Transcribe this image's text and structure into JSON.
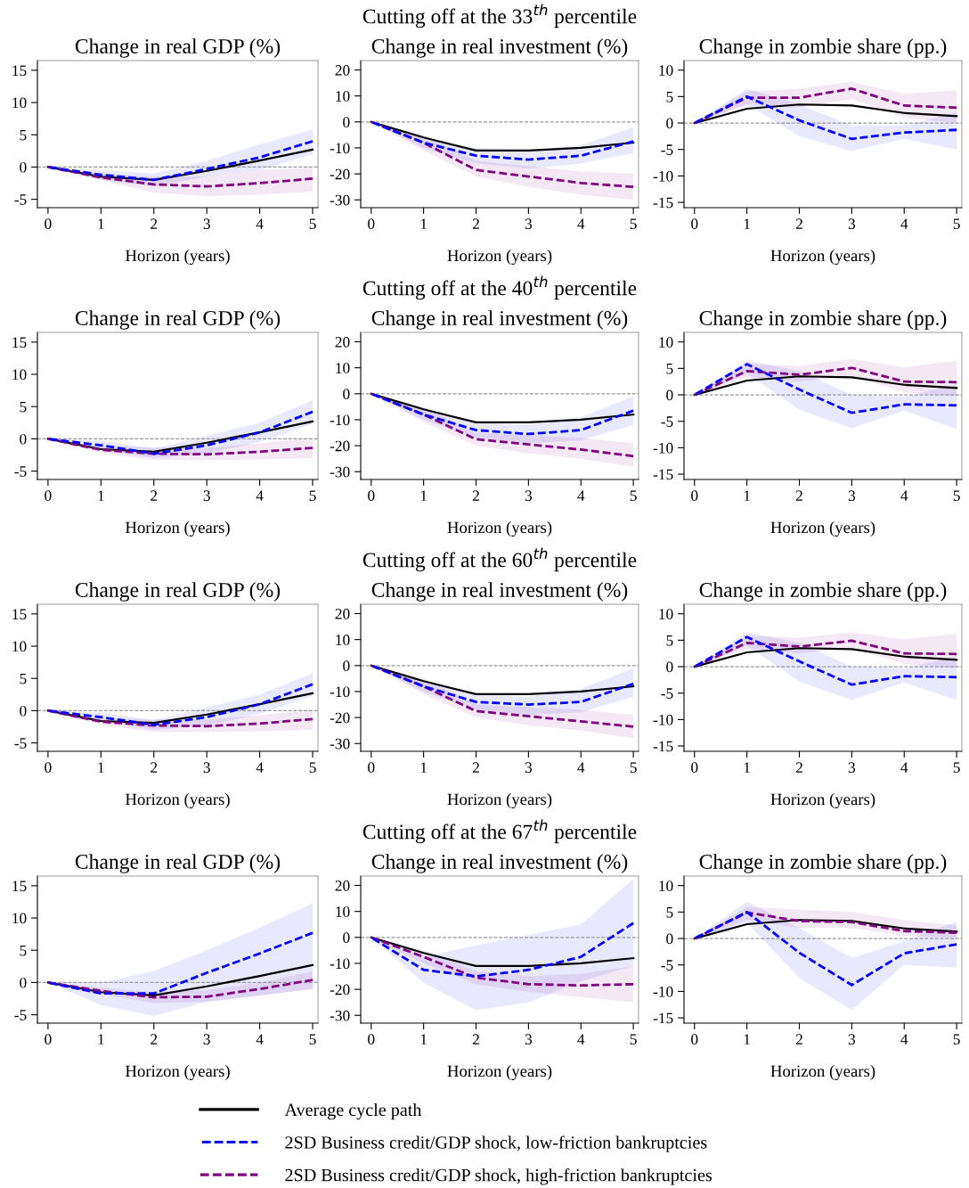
{
  "chart_data": [
    {
      "type": "line",
      "title": "Change in real GDP (%)",
      "xlabel": "Horizon (years)",
      "x": [
        0,
        1,
        2,
        3,
        4,
        5
      ],
      "xlim": [
        -0.2,
        5.1
      ],
      "xticks": [
        0,
        1,
        2,
        3,
        4,
        5
      ],
      "ylim": [
        -6.3,
        16.5
      ],
      "yticks": [
        -5,
        0,
        5,
        10,
        15
      ],
      "ref_lines": [
        {
          "axis": "y",
          "value": 0,
          "color": "#999999",
          "line_style": "dashed"
        }
      ],
      "series": [
        {
          "color": "#000000",
          "line_style": "solid",
          "values": [
            0,
            -1.5,
            -2,
            -0.6,
            1,
            2.7
          ]
        },
        {
          "color": "#0000ff",
          "line_style": "dashed",
          "values": [
            0,
            -1.2,
            -2,
            -0.3,
            1.5,
            4
          ],
          "lower": [
            0,
            -2,
            -3,
            -1.5,
            -0.5,
            2
          ],
          "upper": [
            0,
            -0.5,
            -1,
            1,
            3.5,
            5.8
          ]
        },
        {
          "color": "#800080",
          "line_style": "dashed",
          "values": [
            0,
            -1.6,
            -2.7,
            -3,
            -2.5,
            -1.8
          ],
          "lower": [
            0,
            -2,
            -4,
            -4.5,
            -4.3,
            -3.8
          ],
          "upper": [
            0,
            -1,
            -1.5,
            -1.5,
            -0.5,
            0
          ]
        }
      ]
    },
    {
      "type": "line",
      "title": "Change in real investment (%)",
      "xlabel": "Horizon (years)",
      "annotations": [
        "Cutting off at the 33$^{th}$ percentile"
      ],
      "x": [
        0,
        1,
        2,
        3,
        4,
        5
      ],
      "xlim": [
        -0.2,
        5.1
      ],
      "xticks": [
        0,
        1,
        2,
        3,
        4,
        5
      ],
      "ylim": [
        -33,
        23.6
      ],
      "yticks": [
        -30,
        -20,
        -10,
        0,
        10,
        20
      ],
      "ref_lines": [
        {
          "axis": "y",
          "value": 0,
          "color": "#999999",
          "line_style": "dashed"
        }
      ],
      "series": [
        {
          "color": "#000000",
          "line_style": "solid",
          "values": [
            0,
            -6,
            -11,
            -11,
            -10,
            -8
          ]
        },
        {
          "color": "#0000ff",
          "line_style": "dashed",
          "values": [
            0,
            -8,
            -13,
            -14.5,
            -13,
            -7.5
          ],
          "lower": [
            0,
            -10,
            -16,
            -18,
            -16,
            -12
          ],
          "upper": [
            0,
            -6,
            -10,
            -11,
            -9,
            -2
          ]
        },
        {
          "color": "#800080",
          "line_style": "dashed",
          "values": [
            0,
            -8,
            -18.5,
            -21,
            -23.5,
            -25
          ],
          "lower": [
            0,
            -11,
            -21,
            -25,
            -28,
            -30
          ],
          "upper": [
            0,
            -5,
            -15,
            -17,
            -19,
            -20
          ]
        }
      ]
    },
    {
      "type": "line",
      "title": "Change in zombie share (pp.)",
      "xlabel": "Horizon (years)",
      "x": [
        0,
        1,
        2,
        3,
        4,
        5
      ],
      "xlim": [
        -0.2,
        5.1
      ],
      "xticks": [
        0,
        1,
        2,
        3,
        4,
        5
      ],
      "ylim": [
        -16,
        11.8
      ],
      "yticks": [
        -15,
        -10,
        -5,
        0,
        5,
        10
      ],
      "ref_lines": [
        {
          "axis": "y",
          "value": 0,
          "color": "#999999",
          "line_style": "dashed"
        }
      ],
      "series": [
        {
          "color": "#000000",
          "line_style": "solid",
          "values": [
            0,
            2.7,
            3.5,
            3.3,
            1.9,
            1.3
          ]
        },
        {
          "color": "#0000ff",
          "line_style": "dashed",
          "values": [
            0,
            5,
            0.5,
            -3,
            -1.8,
            -1.3
          ],
          "lower": [
            0,
            3.5,
            -2.5,
            -5.3,
            -3,
            -5
          ],
          "upper": [
            0,
            6.5,
            3.5,
            -0.5,
            -0.5,
            2
          ]
        },
        {
          "color": "#800080",
          "line_style": "dashed",
          "values": [
            0,
            4.8,
            4.8,
            6.5,
            3.3,
            2.9
          ],
          "lower": [
            0,
            3.5,
            3,
            4.5,
            1,
            0
          ],
          "upper": [
            0,
            6,
            6.5,
            7.8,
            5.5,
            6.2
          ]
        }
      ]
    },
    {
      "type": "line",
      "title": "Change in real GDP (%)",
      "xlabel": "Horizon (years)",
      "x": [
        0,
        1,
        2,
        3,
        4,
        5
      ],
      "xlim": [
        -0.2,
        5.1
      ],
      "xticks": [
        0,
        1,
        2,
        3,
        4,
        5
      ],
      "ylim": [
        -6.3,
        16.5
      ],
      "yticks": [
        -5,
        0,
        5,
        10,
        15
      ],
      "ref_lines": [
        {
          "axis": "y",
          "value": 0,
          "color": "#999999",
          "line_style": "dashed"
        }
      ],
      "series": [
        {
          "color": "#000000",
          "line_style": "solid",
          "values": [
            0,
            -1.6,
            -2,
            -0.6,
            1,
            2.7
          ]
        },
        {
          "color": "#0000ff",
          "line_style": "dashed",
          "values": [
            0,
            -1,
            -2.3,
            -1,
            1,
            4.2
          ],
          "lower": [
            0,
            -1.7,
            -3,
            -2.3,
            -0.5,
            2.3
          ],
          "upper": [
            0,
            -0.3,
            -1.5,
            0.5,
            2.5,
            6
          ]
        },
        {
          "color": "#800080",
          "line_style": "dashed",
          "values": [
            0,
            -1.7,
            -2.3,
            -2.4,
            -2,
            -1.4
          ],
          "lower": [
            0,
            -2.2,
            -3.3,
            -3.3,
            -3.2,
            -3
          ],
          "upper": [
            0,
            -1.2,
            -1.3,
            -1.4,
            -0.7,
            0.2
          ]
        }
      ]
    },
    {
      "type": "line",
      "title": "Change in real investment (%)",
      "xlabel": "Horizon (years)",
      "annotations": [
        "Cutting off at the 40$^{th}$ percentile"
      ],
      "x": [
        0,
        1,
        2,
        3,
        4,
        5
      ],
      "xlim": [
        -0.2,
        5.1
      ],
      "xticks": [
        0,
        1,
        2,
        3,
        4,
        5
      ],
      "ylim": [
        -33,
        23.6
      ],
      "yticks": [
        -30,
        -20,
        -10,
        0,
        10,
        20
      ],
      "ref_lines": [
        {
          "axis": "y",
          "value": 0,
          "color": "#999999",
          "line_style": "dashed"
        }
      ],
      "series": [
        {
          "color": "#000000",
          "line_style": "solid",
          "values": [
            0,
            -6,
            -11,
            -11,
            -10,
            -8
          ]
        },
        {
          "color": "#0000ff",
          "line_style": "dashed",
          "values": [
            0,
            -8,
            -14,
            -15.5,
            -14,
            -6.5
          ],
          "lower": [
            0,
            -10,
            -17,
            -19,
            -18,
            -12
          ],
          "upper": [
            0,
            -6,
            -11,
            -12,
            -9,
            -1
          ]
        },
        {
          "color": "#800080",
          "line_style": "dashed",
          "values": [
            0,
            -8,
            -17.5,
            -19.5,
            -21.5,
            -24
          ],
          "lower": [
            0,
            -11,
            -20,
            -23,
            -25,
            -28
          ],
          "upper": [
            0,
            -5,
            -15,
            -16,
            -17,
            -19
          ]
        }
      ]
    },
    {
      "type": "line",
      "title": "Change in zombie share (pp.)",
      "xlabel": "Horizon (years)",
      "x": [
        0,
        1,
        2,
        3,
        4,
        5
      ],
      "xlim": [
        -0.2,
        5.1
      ],
      "xticks": [
        0,
        1,
        2,
        3,
        4,
        5
      ],
      "ylim": [
        -16,
        11.8
      ],
      "yticks": [
        -15,
        -10,
        -5,
        0,
        5,
        10
      ],
      "ref_lines": [
        {
          "axis": "y",
          "value": 0,
          "color": "#999999",
          "line_style": "dashed"
        }
      ],
      "series": [
        {
          "color": "#000000",
          "line_style": "solid",
          "values": [
            0,
            2.7,
            3.5,
            3.3,
            1.9,
            1.3
          ]
        },
        {
          "color": "#0000ff",
          "line_style": "dashed",
          "values": [
            0,
            5.8,
            1,
            -3.4,
            -1.8,
            -2
          ],
          "lower": [
            0,
            4,
            -2.8,
            -6.3,
            -3,
            -6.5
          ],
          "upper": [
            0,
            6.5,
            4.5,
            0,
            -0.3,
            2
          ]
        },
        {
          "color": "#800080",
          "line_style": "dashed",
          "values": [
            0,
            4.5,
            3.8,
            5.1,
            2.5,
            2.4
          ],
          "lower": [
            0,
            3.3,
            2.5,
            3.5,
            0.5,
            -0.3
          ],
          "upper": [
            0,
            5.8,
            5.5,
            6.8,
            5.2,
            6.5
          ]
        }
      ]
    },
    {
      "type": "line",
      "title": "Change in real GDP (%)",
      "xlabel": "Horizon (years)",
      "x": [
        0,
        1,
        2,
        3,
        4,
        5
      ],
      "xlim": [
        -0.2,
        5.1
      ],
      "xticks": [
        0,
        1,
        2,
        3,
        4,
        5
      ],
      "ylim": [
        -6.3,
        16.5
      ],
      "yticks": [
        -5,
        0,
        5,
        10,
        15
      ],
      "ref_lines": [
        {
          "axis": "y",
          "value": 0,
          "color": "#999999",
          "line_style": "dashed"
        }
      ],
      "series": [
        {
          "color": "#000000",
          "line_style": "solid",
          "values": [
            0,
            -1.6,
            -1.9,
            -0.6,
            1,
            2.7
          ]
        },
        {
          "color": "#0000ff",
          "line_style": "dashed",
          "values": [
            0,
            -1,
            -2.2,
            -1,
            1,
            4.1
          ],
          "lower": [
            0,
            -1.7,
            -3,
            -2.3,
            -0.5,
            2.3
          ],
          "upper": [
            0,
            -0.3,
            -1.5,
            0.5,
            2.5,
            5.8
          ]
        },
        {
          "color": "#800080",
          "line_style": "dashed",
          "values": [
            0,
            -1.7,
            -2.3,
            -2.4,
            -2,
            -1.3
          ],
          "lower": [
            0,
            -2.2,
            -3.3,
            -3.3,
            -3.2,
            -3
          ],
          "upper": [
            0,
            -1.2,
            -1.3,
            -1.4,
            -0.7,
            0.2
          ]
        }
      ]
    },
    {
      "type": "line",
      "title": "Change in real investment (%)",
      "xlabel": "Horizon (years)",
      "annotations": [
        "Cutting off at the 60$^{th}$ percentile"
      ],
      "x": [
        0,
        1,
        2,
        3,
        4,
        5
      ],
      "xlim": [
        -0.2,
        5.1
      ],
      "xticks": [
        0,
        1,
        2,
        3,
        4,
        5
      ],
      "ylim": [
        -33,
        23.6
      ],
      "yticks": [
        -30,
        -20,
        -10,
        0,
        10,
        20
      ],
      "ref_lines": [
        {
          "axis": "y",
          "value": 0,
          "color": "#999999",
          "line_style": "dashed"
        }
      ],
      "series": [
        {
          "color": "#000000",
          "line_style": "solid",
          "values": [
            0,
            -6,
            -11,
            -11,
            -10,
            -8
          ]
        },
        {
          "color": "#0000ff",
          "line_style": "dashed",
          "values": [
            0,
            -8,
            -14,
            -15,
            -14,
            -7
          ],
          "lower": [
            0,
            -10,
            -17,
            -19,
            -18,
            -12
          ],
          "upper": [
            0,
            -6,
            -11,
            -12,
            -9,
            -1
          ]
        },
        {
          "color": "#800080",
          "line_style": "dashed",
          "values": [
            0,
            -8,
            -17.5,
            -19.5,
            -21.5,
            -23.5
          ],
          "lower": [
            0,
            -11,
            -20,
            -23,
            -25,
            -28
          ],
          "upper": [
            0,
            -5,
            -15,
            -16,
            -17,
            -19
          ]
        }
      ]
    },
    {
      "type": "line",
      "title": "Change in zombie share (pp.)",
      "xlabel": "Horizon (years)",
      "x": [
        0,
        1,
        2,
        3,
        4,
        5
      ],
      "xlim": [
        -0.2,
        5.1
      ],
      "xticks": [
        0,
        1,
        2,
        3,
        4,
        5
      ],
      "ylim": [
        -16,
        11.8
      ],
      "yticks": [
        -15,
        -10,
        -5,
        0,
        5,
        10
      ],
      "ref_lines": [
        {
          "axis": "y",
          "value": 0,
          "color": "#999999",
          "line_style": "dashed"
        }
      ],
      "series": [
        {
          "color": "#000000",
          "line_style": "solid",
          "values": [
            0,
            2.7,
            3.5,
            3.3,
            1.9,
            1.3
          ]
        },
        {
          "color": "#0000ff",
          "line_style": "dashed",
          "values": [
            0,
            5.6,
            1,
            -3.4,
            -1.8,
            -2
          ],
          "lower": [
            0,
            4,
            -2.8,
            -6.3,
            -3,
            -6.3
          ],
          "upper": [
            0,
            6.5,
            4.5,
            0,
            -0.3,
            2
          ]
        },
        {
          "color": "#800080",
          "line_style": "dashed",
          "values": [
            0,
            4.5,
            3.8,
            4.9,
            2.5,
            2.4
          ],
          "lower": [
            0,
            3.3,
            2.5,
            3.5,
            0.5,
            -0.3
          ],
          "upper": [
            0,
            5.8,
            5.5,
            6.5,
            5.2,
            6.2
          ]
        }
      ]
    },
    {
      "type": "line",
      "title": "Change in real GDP (%)",
      "xlabel": "Horizon (years)",
      "x": [
        0,
        1,
        2,
        3,
        4,
        5
      ],
      "xlim": [
        -0.2,
        5.1
      ],
      "xticks": [
        0,
        1,
        2,
        3,
        4,
        5
      ],
      "ylim": [
        -6.3,
        16.5
      ],
      "yticks": [
        -5,
        0,
        5,
        10,
        15
      ],
      "ref_lines": [
        {
          "axis": "y",
          "value": 0,
          "color": "#999999",
          "line_style": "dashed"
        }
      ],
      "series": [
        {
          "color": "#000000",
          "line_style": "solid",
          "values": [
            0,
            -1.5,
            -2,
            -0.6,
            1,
            2.7
          ]
        },
        {
          "color": "#0000ff",
          "line_style": "dashed",
          "values": [
            0,
            -1.7,
            -1.7,
            1.5,
            4.5,
            7.7
          ],
          "lower": [
            0,
            -3.5,
            -5.2,
            -3,
            -2,
            -1
          ],
          "upper": [
            0,
            0,
            1.8,
            5,
            8.5,
            12.3
          ]
        },
        {
          "color": "#800080",
          "line_style": "dashed",
          "values": [
            0,
            -1.3,
            -2.3,
            -2.2,
            -1,
            0.4
          ],
          "lower": [
            0,
            -1.8,
            -3.2,
            -3,
            -2,
            -1
          ],
          "upper": [
            0,
            -0.8,
            -1.5,
            -1.2,
            0,
            1.7
          ]
        }
      ]
    },
    {
      "type": "line",
      "title": "Change in real investment (%)",
      "xlabel": "Horizon (years)",
      "annotations": [
        "Cutting off at the 67$^{th}$ percentile"
      ],
      "x": [
        0,
        1,
        2,
        3,
        4,
        5
      ],
      "xlim": [
        -0.2,
        5.1
      ],
      "xticks": [
        0,
        1,
        2,
        3,
        4,
        5
      ],
      "ylim": [
        -33,
        23.6
      ],
      "yticks": [
        -30,
        -20,
        -10,
        0,
        10,
        20
      ],
      "ref_lines": [
        {
          "axis": "y",
          "value": 0,
          "color": "#999999",
          "line_style": "dashed"
        }
      ],
      "series": [
        {
          "color": "#000000",
          "line_style": "solid",
          "values": [
            0,
            -6,
            -11,
            -11,
            -10,
            -8
          ]
        },
        {
          "color": "#0000ff",
          "line_style": "dashed",
          "values": [
            0,
            -12.5,
            -15,
            -12.5,
            -7.5,
            5.5
          ],
          "lower": [
            0,
            -17.5,
            -28,
            -25,
            -17,
            -11
          ],
          "upper": [
            0,
            -7.5,
            -3,
            1,
            5,
            22.5
          ]
        },
        {
          "color": "#800080",
          "line_style": "dashed",
          "values": [
            0,
            -7.5,
            -15.5,
            -18,
            -18.5,
            -18
          ],
          "lower": [
            0,
            -10,
            -18,
            -21,
            -23,
            -25
          ],
          "upper": [
            0,
            -5,
            -13,
            -15,
            -14,
            -11
          ]
        }
      ]
    },
    {
      "type": "line",
      "title": "Change in zombie share (pp.)",
      "xlabel": "Horizon (years)",
      "x": [
        0,
        1,
        2,
        3,
        4,
        5
      ],
      "xlim": [
        -0.2,
        5.1
      ],
      "xticks": [
        0,
        1,
        2,
        3,
        4,
        5
      ],
      "ylim": [
        -16,
        11.8
      ],
      "yticks": [
        -15,
        -10,
        -5,
        0,
        5,
        10
      ],
      "ref_lines": [
        {
          "axis": "y",
          "value": 0,
          "color": "#999999",
          "line_style": "dashed"
        }
      ],
      "legend": "bottom",
      "series": [
        {
          "name": "Average cycle path",
          "color": "#000000",
          "line_style": "solid",
          "values": [
            0,
            2.7,
            3.5,
            3.3,
            1.9,
            1.3
          ]
        },
        {
          "name": "2SD Business credit/GDP shock, low-friction bankruptcies",
          "color": "#0000ff",
          "line_style": "dashed",
          "values": [
            0,
            5,
            -2.7,
            -8.8,
            -2.8,
            -1.1
          ],
          "lower": [
            0,
            3,
            -7.5,
            -13.5,
            -5,
            -5.5
          ],
          "upper": [
            0,
            7,
            2,
            -3.7,
            -0.5,
            3.2
          ]
        },
        {
          "name": "2SD Business credit/GDP shock, high-friction bankruptcies",
          "color": "#800080",
          "line_style": "dashed",
          "values": [
            0,
            4.9,
            3.3,
            3.1,
            1.4,
            1.1
          ],
          "lower": [
            0,
            3.5,
            2,
            2,
            0.5,
            0
          ],
          "upper": [
            0,
            6,
            5.5,
            5,
            3.5,
            2.5
          ]
        }
      ]
    }
  ]
}
